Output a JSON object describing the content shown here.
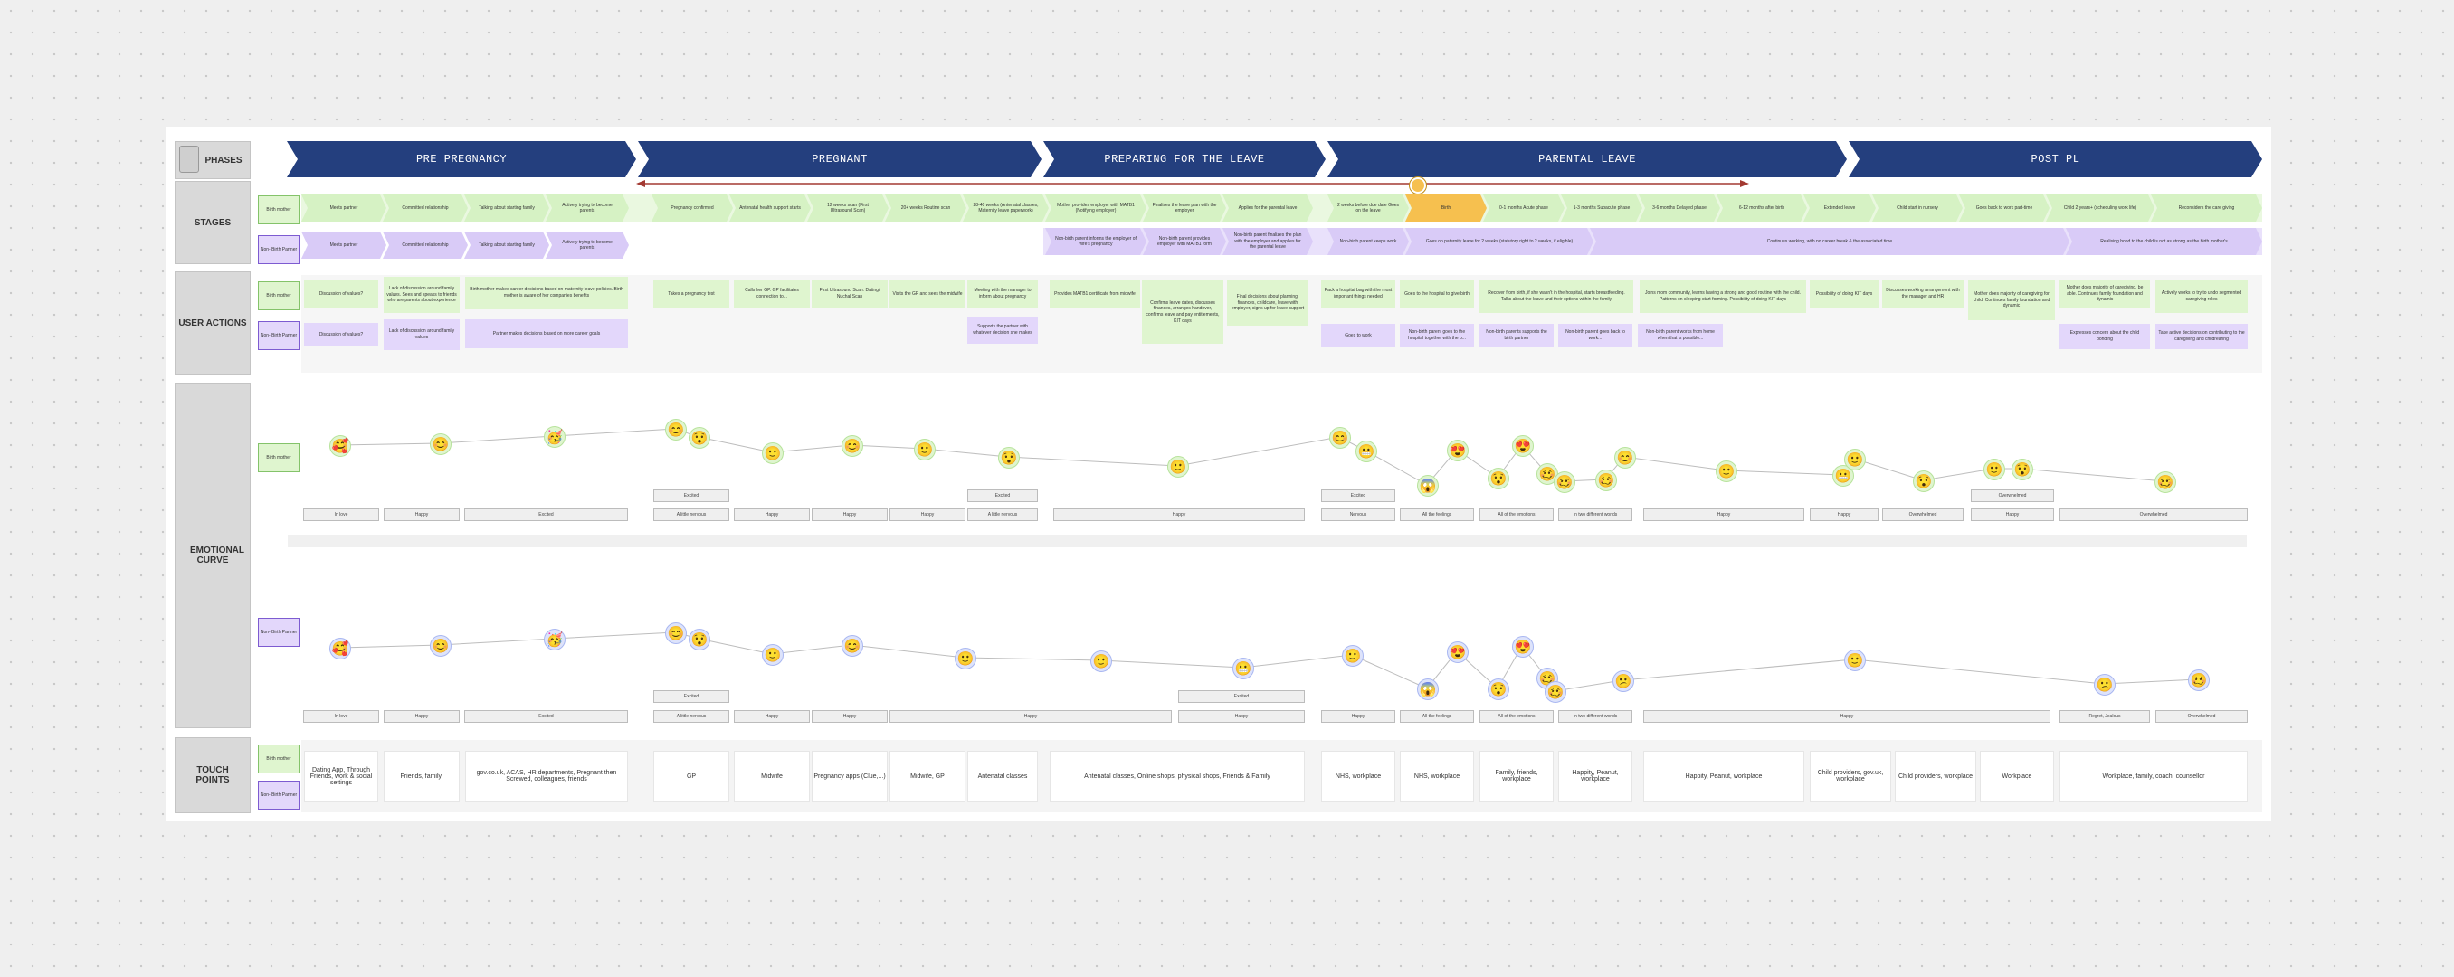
{
  "row_labels": {
    "phases": "PHASES",
    "stages": "STAGES",
    "user_actions": "USER ACTIONS",
    "emotional_curve": "EMOTIONAL CURVE",
    "touch_points": "TOUCH POINTS"
  },
  "personas": {
    "birth": "Birth mother",
    "non_birth": "Non- Birth Partner"
  },
  "phases": [
    "PRE PREGNANCY",
    "PREGNANT",
    "PREPARING FOR THE LEAVE",
    "PARENTAL LEAVE",
    "POST PL"
  ],
  "stages_birth": [
    "Meets partner",
    "Committed relationship",
    "Talking about starting family",
    "Actively trying to become parents",
    "Pregnancy confirmed",
    "Antenatal health support starts",
    "12 weeks scan (First Ultrasound Scan)",
    "20+ weeks Routine scan",
    "28-40 weeks (Antenatal classes, Maternity leave paperwork)",
    "Mother provides employer with MATB1 (Notifying employer)",
    "Finalises the leave plan with the employer",
    "Applies for the parental leave",
    "2 weeks before due date Goes on the leave",
    "Birth",
    "0-1 months Acute phase",
    "1-3 months Subacute phase",
    "3-6 months Delayed phase",
    "6-12 months after birth",
    "Extended leave",
    "Child start in nursery",
    "Goes back to work part-time",
    "Child 2 years+ (scheduling work life)",
    "Reconsiders the care giving"
  ],
  "stages_non": [
    "Meets partner",
    "Committed relationship",
    "Talking about starting family",
    "Actively trying to become parents",
    "Non-birth parent informs the employer of wife's pregnancy",
    "Non-birth parent provides employer with MATB1 form",
    "Non-birth parent finalizes the plan with the employer and applies for the parental leave",
    "Non-birth parent keeps work",
    "Goes on paternity leave for 2 weeks (statutory right to 2 weeks, if eligible)",
    "Continues working, with no career break & the associated time",
    "Realising bond to the child is not as strong as the birth mother's"
  ],
  "actions_birth": [
    "Discussion of values?",
    "Lack of discussion around family values. Sees and speaks to friends who are parents about experience",
    "Birth mother makes career decisions based on maternity leave policies. Birth mother is aware of her companies benefits",
    "Takes a pregnancy test",
    "Calls her GP. GP facilitates connection to...",
    "First Ultrasound Scan: Dating/ Nuchal Scan",
    "Visits the GP and sees the midwife",
    "Meeting with the manager to inform about pregnancy",
    "Provides MATB1 certificate from midwife",
    "Confirms leave dates, discusses finances, arranges handover, confirms leave and pay entitlements, KIT days",
    "Final decisions about planning, finances, childcare, leave with employer, signs up for leave support",
    "Pack a hospital bag with the most important things needed",
    "Goes to the hospital to give birth",
    "Recover from birth, if she wasn't in the hospital, starts breastfeeding. Talks about the leave and their options within the family",
    "Joins mom community, learns having a strong and good routine with the child. Patterns on sleeping start forming. Possibility of doing KIT days",
    "Possibility of doing KIT days",
    "Discusses working arrangement with the manager and HR",
    "Mother does majority of caregiving for child. Continues family foundation and dynamic",
    "Mother does majority of caregiving, be able. Continues family foundation and dynamic",
    "Actively works to try to undo segmented caregiving roles"
  ],
  "actions_non": [
    "Discussion of values?",
    "Lack of discussion around family values",
    "Partner makes decisions based on more career goals",
    "Supports the partner with whatever decision she makes",
    "Goes to work",
    "Non-birth parent goes to the hospital together with the b...",
    "Non-birth parents supports the birth partner",
    "Non-birth parent goes back to work...",
    "Non-birth parent works from home when that is possible...",
    "Expresses concern about the child bonding",
    "Take active decisions on contributing to the caregiving and childrearing"
  ],
  "emotions_birth": [
    "In love",
    "Happy",
    "Excited",
    "Excited",
    "A little nervous",
    "Happy",
    "Happy",
    "Happy",
    "Excited",
    "A little nervous",
    "Happy",
    "Excited",
    "Nervous",
    "All the feelings",
    "All of the emotions",
    "In two different worlds",
    "Happy",
    "Happy",
    "Overwhelmed",
    "Overwhelmed",
    "Happy",
    "Overwhelmed"
  ],
  "emotions_non": [
    "In love",
    "Happy",
    "Excited",
    "Excited",
    "A little nervous",
    "Happy",
    "Happy",
    "Happy",
    "Excited",
    "Happy",
    "Happy",
    "All the feelings",
    "All of the emotions",
    "In two different worlds",
    "Happy",
    "Regret, Jealous",
    "Overwhelmed"
  ],
  "touch_points": [
    "Dating App, Through Friends, work & social settings",
    "Friends, family,",
    "gov.co.uk, ACAS, HR departments, Pregnant then Screwed, colleagues, friends",
    "GP",
    "Midwife",
    "Pregnancy apps (Clue,...)",
    "Midwife, GP",
    "Antenatal classes",
    "Antenatal classes, Online shops, physical shops, Friends & Family",
    "NHS, workplace",
    "NHS, workplace",
    "Family, friends, workplace",
    "Happity, Peanut, workplace",
    "Happity, Peanut, workplace",
    "Child providers, gov.uk, workplace",
    "Child providers, workplace",
    "Workplace",
    "Workplace, family, coach, counsellor"
  ],
  "icon_names": {
    "emoji_in_love": "smiling-face-with-hearts-icon",
    "emoji_happy": "smiling-face-icon",
    "emoji_excited": "partying-face-icon",
    "emoji_nervous": "grimacing-face-icon",
    "emoji_overwhelmed": "woozy-face-icon",
    "emoji_surprised": "astonished-face-icon",
    "emoji_heart_eyes": "heart-eyes-face-icon",
    "emoji_scream": "screaming-face-icon",
    "avatar": "cursor-avatar-icon",
    "arrow": "timeline-arrow-icon"
  },
  "colors": {
    "phase_blue": "#243f7e",
    "birth_green": "#d6f2c4",
    "non_birth_purple": "#d9cbf7",
    "birth_highlight": "#f6c04f",
    "arrow_red": "#a33a32"
  }
}
